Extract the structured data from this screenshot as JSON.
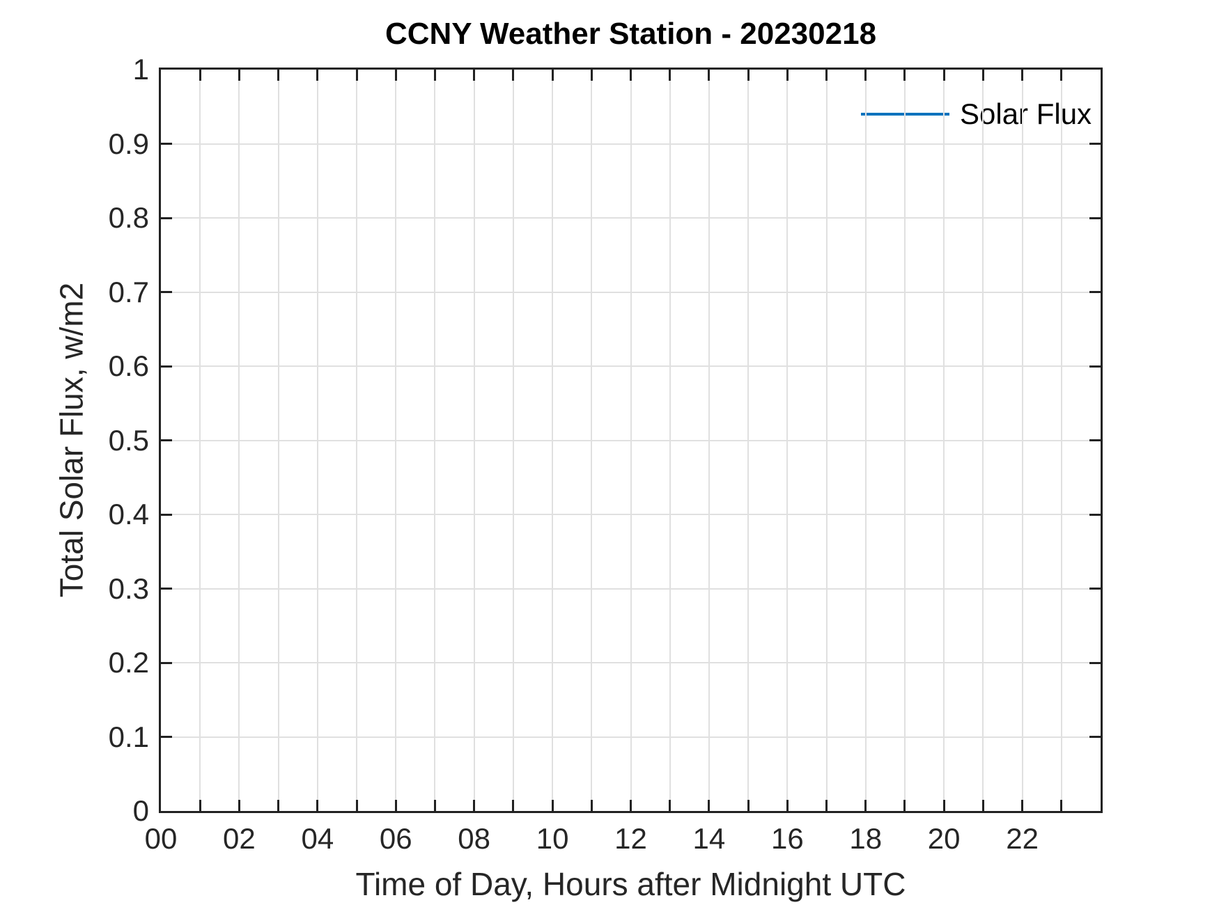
{
  "chart_data": {
    "type": "line",
    "title": "CCNY Weather Station - 20230218",
    "xlabel": "Time of Day, Hours after Midnight UTC",
    "ylabel": "Total Solar Flux, w/m2",
    "xlim": [
      0,
      24
    ],
    "ylim": [
      0,
      1
    ],
    "grid": true,
    "x_axis": {
      "tick_interval": 1,
      "label_interval": 2,
      "tick_labels": [
        "00",
        "02",
        "04",
        "06",
        "08",
        "10",
        "12",
        "14",
        "16",
        "18",
        "20",
        "22"
      ]
    },
    "y_axis": {
      "tick_interval": 0.1,
      "tick_labels": [
        "0",
        "0.1",
        "0.2",
        "0.3",
        "0.4",
        "0.5",
        "0.6",
        "0.7",
        "0.8",
        "0.9",
        "1"
      ]
    },
    "legend": {
      "position": "upper-right",
      "entries": [
        {
          "label": "Solar Flux",
          "color": "#0072BD"
        }
      ]
    },
    "series": [
      {
        "name": "Solar Flux",
        "color": "#0072BD",
        "x": [],
        "y": []
      }
    ],
    "colors": {
      "axis": "#222222",
      "grid": "#e0e0e0",
      "text": "#262626",
      "background": "#ffffff"
    }
  }
}
